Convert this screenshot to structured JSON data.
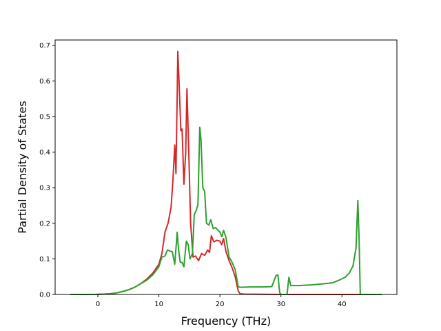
{
  "chart_data": {
    "type": "line",
    "title": "",
    "xlabel": "Frequency (THz)",
    "ylabel": "Partial Density of States",
    "xlim": [
      -7,
      49
    ],
    "ylim": [
      0,
      0.715
    ],
    "x_ticks": [
      0,
      10,
      20,
      30,
      40
    ],
    "x_tick_labels": [
      "0",
      "10",
      "20",
      "30",
      "40"
    ],
    "y_ticks": [
      0.0,
      0.1,
      0.2,
      0.3,
      0.4,
      0.5,
      0.6,
      0.7
    ],
    "y_tick_labels": [
      "0.0",
      "0.1",
      "0.2",
      "0.3",
      "0.4",
      "0.5",
      "0.6",
      "0.7"
    ],
    "grid": false,
    "legend": "none",
    "series": [
      {
        "color": "#d62728",
        "points": [
          [
            -4.5,
            0
          ],
          [
            -0.5,
            0
          ],
          [
            1,
            0.001
          ],
          [
            2,
            0.002
          ],
          [
            3,
            0.004
          ],
          [
            4,
            0.008
          ],
          [
            5,
            0.013
          ],
          [
            6,
            0.02
          ],
          [
            7,
            0.03
          ],
          [
            8,
            0.043
          ],
          [
            9,
            0.06
          ],
          [
            10,
            0.085
          ],
          [
            10.5,
            0.115
          ],
          [
            11,
            0.175
          ],
          [
            11.5,
            0.2
          ],
          [
            12,
            0.245
          ],
          [
            12.3,
            0.32
          ],
          [
            12.6,
            0.42
          ],
          [
            12.8,
            0.34
          ],
          [
            13.0,
            0.56
          ],
          [
            13.1,
            0.683
          ],
          [
            13.3,
            0.6
          ],
          [
            13.6,
            0.46
          ],
          [
            13.8,
            0.465
          ],
          [
            14.1,
            0.31
          ],
          [
            14.4,
            0.4
          ],
          [
            14.6,
            0.578
          ],
          [
            14.9,
            0.4
          ],
          [
            15.2,
            0.2
          ],
          [
            15.6,
            0.105
          ],
          [
            16.0,
            0.108
          ],
          [
            16.5,
            0.095
          ],
          [
            17.0,
            0.115
          ],
          [
            17.5,
            0.11
          ],
          [
            18.0,
            0.125
          ],
          [
            18.3,
            0.118
          ],
          [
            18.6,
            0.165
          ],
          [
            19.0,
            0.148
          ],
          [
            19.5,
            0.152
          ],
          [
            20.0,
            0.15
          ],
          [
            20.3,
            0.14
          ],
          [
            20.6,
            0.157
          ],
          [
            21.0,
            0.12
          ],
          [
            21.5,
            0.095
          ],
          [
            22.0,
            0.075
          ],
          [
            22.5,
            0.05
          ],
          [
            23.0,
            0.01
          ],
          [
            23.3,
            0.002
          ],
          [
            24,
            0.001
          ],
          [
            30,
            0.0
          ],
          [
            46.5,
            0.0
          ]
        ]
      },
      {
        "color": "#2ca02c",
        "points": [
          [
            -4.5,
            0
          ],
          [
            -0.5,
            0
          ],
          [
            1,
            0.001
          ],
          [
            2,
            0.002
          ],
          [
            3,
            0.004
          ],
          [
            4,
            0.008
          ],
          [
            5,
            0.013
          ],
          [
            6,
            0.02
          ],
          [
            7,
            0.03
          ],
          [
            8,
            0.04
          ],
          [
            9,
            0.055
          ],
          [
            10,
            0.078
          ],
          [
            10.5,
            0.105
          ],
          [
            11,
            0.108
          ],
          [
            11.4,
            0.125
          ],
          [
            11.8,
            0.122
          ],
          [
            12.2,
            0.12
          ],
          [
            12.6,
            0.085
          ],
          [
            13.0,
            0.175
          ],
          [
            13.2,
            0.13
          ],
          [
            13.5,
            0.09
          ],
          [
            13.8,
            0.09
          ],
          [
            14.1,
            0.078
          ],
          [
            14.5,
            0.15
          ],
          [
            14.8,
            0.14
          ],
          [
            15.1,
            0.1
          ],
          [
            15.5,
            0.115
          ],
          [
            15.8,
            0.225
          ],
          [
            16.1,
            0.235
          ],
          [
            16.4,
            0.252
          ],
          [
            16.7,
            0.47
          ],
          [
            16.9,
            0.435
          ],
          [
            17.2,
            0.3
          ],
          [
            17.5,
            0.29
          ],
          [
            17.8,
            0.2
          ],
          [
            18.2,
            0.195
          ],
          [
            18.5,
            0.21
          ],
          [
            18.9,
            0.185
          ],
          [
            19.3,
            0.188
          ],
          [
            19.7,
            0.18
          ],
          [
            20.0,
            0.175
          ],
          [
            20.3,
            0.162
          ],
          [
            20.6,
            0.18
          ],
          [
            21.0,
            0.16
          ],
          [
            21.5,
            0.105
          ],
          [
            22.0,
            0.09
          ],
          [
            22.5,
            0.07
          ],
          [
            23.0,
            0.022
          ],
          [
            23.3,
            0.02
          ],
          [
            25,
            0.021
          ],
          [
            27,
            0.021
          ],
          [
            28.5,
            0.022
          ],
          [
            29.2,
            0.053
          ],
          [
            29.5,
            0.055
          ],
          [
            29.8,
            0.005
          ],
          [
            30.0,
            0.0
          ],
          [
            31.0,
            0.0
          ],
          [
            31.3,
            0.048
          ],
          [
            31.6,
            0.025
          ],
          [
            33,
            0.025
          ],
          [
            35,
            0.027
          ],
          [
            37,
            0.03
          ],
          [
            38.5,
            0.033
          ],
          [
            39.5,
            0.04
          ],
          [
            40.5,
            0.048
          ],
          [
            41.2,
            0.06
          ],
          [
            41.8,
            0.08
          ],
          [
            42.3,
            0.13
          ],
          [
            42.6,
            0.264
          ],
          [
            42.8,
            0.16
          ],
          [
            43.0,
            0.0
          ],
          [
            46.5,
            0.0
          ]
        ]
      }
    ]
  }
}
